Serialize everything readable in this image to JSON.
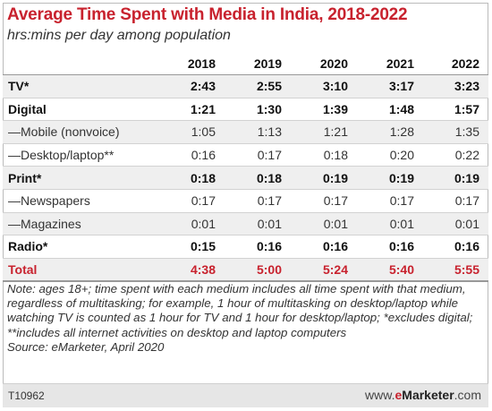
{
  "chart_data": {
    "type": "table",
    "title": "Average Time Spent with Media in India, 2018-2022",
    "subtitle": "hrs:mins per day among population",
    "columns": [
      "2018",
      "2019",
      "2020",
      "2021",
      "2022"
    ],
    "rows": [
      {
        "label": "TV*",
        "style": "bold",
        "values": [
          "2:43",
          "2:55",
          "3:10",
          "3:17",
          "3:23"
        ]
      },
      {
        "label": "Digital",
        "style": "bold",
        "values": [
          "1:21",
          "1:30",
          "1:39",
          "1:48",
          "1:57"
        ]
      },
      {
        "label": "—Mobile (nonvoice)",
        "style": "sub",
        "values": [
          "1:05",
          "1:13",
          "1:21",
          "1:28",
          "1:35"
        ]
      },
      {
        "label": "—Desktop/laptop**",
        "style": "sub",
        "values": [
          "0:16",
          "0:17",
          "0:18",
          "0:20",
          "0:22"
        ]
      },
      {
        "label": "Print*",
        "style": "bold",
        "values": [
          "0:18",
          "0:18",
          "0:19",
          "0:19",
          "0:19"
        ]
      },
      {
        "label": "—Newspapers",
        "style": "sub",
        "values": [
          "0:17",
          "0:17",
          "0:17",
          "0:17",
          "0:17"
        ]
      },
      {
        "label": "—Magazines",
        "style": "sub",
        "values": [
          "0:01",
          "0:01",
          "0:01",
          "0:01",
          "0:01"
        ]
      },
      {
        "label": "Radio*",
        "style": "bold",
        "values": [
          "0:15",
          "0:16",
          "0:16",
          "0:16",
          "0:16"
        ]
      },
      {
        "label": "Total",
        "style": "total",
        "values": [
          "4:38",
          "5:00",
          "5:24",
          "5:40",
          "5:55"
        ]
      }
    ]
  },
  "note": "Note: ages 18+; time spent with each medium includes all time spent with that medium, regardless of multitasking; for example, 1 hour of multitasking on desktop/laptop while watching TV is counted as 1 hour for TV and 1 hour for desktop/laptop; *excludes digital; **includes all internet activities on desktop and laptop computers",
  "source": "Source: eMarketer, April 2020",
  "footer": {
    "code": "T10962",
    "brand_prefix": "www.",
    "brand_e": "e",
    "brand_name": "Marketer",
    "brand_suffix": ".com"
  },
  "colors": {
    "accent_red": "#c8222e",
    "row_shade": "#efefef",
    "footer_bg": "#e6e6e6"
  }
}
